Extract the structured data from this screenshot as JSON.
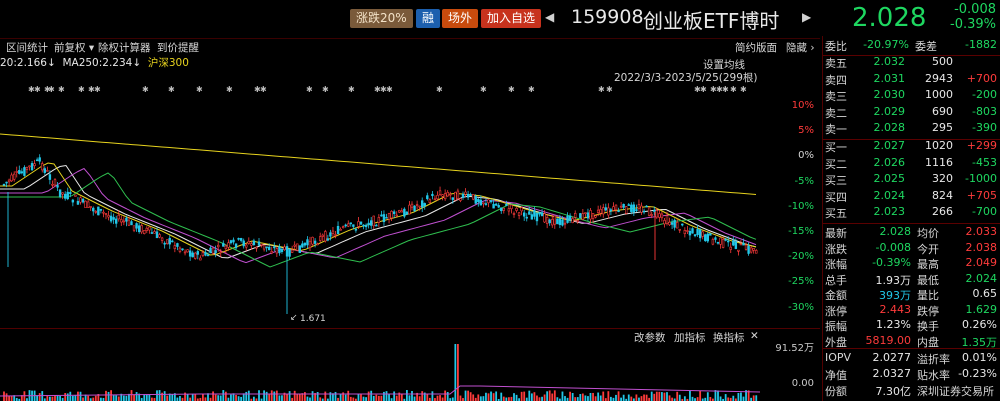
{
  "header": {
    "btn_zdf": "涨跌20%",
    "btn_rong": "融",
    "btn_cw": "场外",
    "btn_add": "加入自选",
    "code": "159908",
    "name": "创业板ETF博时",
    "price": "2.028",
    "change": "-0.008",
    "change_pct": "-0.39%"
  },
  "toolbar": {
    "items": [
      "区间统计",
      "前复权",
      "除权计算器",
      "到价提醒"
    ],
    "right": [
      "简约版面",
      "隐藏"
    ]
  },
  "ma": {
    "ma1": "20:2.166↓",
    "ma2": "MA250:2.234↓",
    "ma3": "沪深300"
  },
  "chart": {
    "ma_settings": "设置均线",
    "date_range": "2022/3/3-2023/5/25(299根)",
    "y_labels": [
      "10%",
      "5%",
      "0%",
      "-5%",
      "-10%",
      "-15%",
      "-20%",
      "-25%",
      "-30%"
    ],
    "low_label": "1.671",
    "colors": {
      "up": "#ff3b3b",
      "down": "#22c7e8",
      "ma_yellow": "#e6d21e",
      "ma_white": "#e8e8e8",
      "ma_purple": "#c050d0"
    }
  },
  "volume": {
    "buttons": [
      "改参数",
      "加指标",
      "换指标"
    ],
    "labels": [
      "91.52万",
      "0.00"
    ]
  },
  "side": {
    "committee": {
      "wb_label": "委比",
      "wb": "-20.97%",
      "wc_label": "委差",
      "wc": "-1882"
    },
    "asks": [
      {
        "label": "卖五",
        "price": "2.032",
        "vol": "500",
        "chg": ""
      },
      {
        "label": "卖四",
        "price": "2.031",
        "vol": "2943",
        "chg": "+700"
      },
      {
        "label": "卖三",
        "price": "2.030",
        "vol": "1000",
        "chg": "-200"
      },
      {
        "label": "卖二",
        "price": "2.029",
        "vol": "690",
        "chg": "-803"
      },
      {
        "label": "卖一",
        "price": "2.028",
        "vol": "295",
        "chg": "-390"
      }
    ],
    "bids": [
      {
        "label": "买一",
        "price": "2.027",
        "vol": "1020",
        "chg": "+299"
      },
      {
        "label": "买二",
        "price": "2.026",
        "vol": "1116",
        "chg": "-453"
      },
      {
        "label": "买三",
        "price": "2.025",
        "vol": "320",
        "chg": "-1000"
      },
      {
        "label": "买四",
        "price": "2.024",
        "vol": "824",
        "chg": "+705"
      },
      {
        "label": "买五",
        "price": "2.023",
        "vol": "266",
        "chg": "-700"
      }
    ],
    "stats": [
      {
        "l1": "最新",
        "v1": "2.028",
        "c1": "green",
        "l2": "均价",
        "v2": "2.033",
        "c2": "red"
      },
      {
        "l1": "涨跌",
        "v1": "-0.008",
        "c1": "green",
        "l2": "今开",
        "v2": "2.038",
        "c2": "red"
      },
      {
        "l1": "涨幅",
        "v1": "-0.39%",
        "c1": "green",
        "l2": "最高",
        "v2": "2.049",
        "c2": "red"
      },
      {
        "l1": "总手",
        "v1": "1.93万",
        "c1": "white",
        "l2": "最低",
        "v2": "2.024",
        "c2": "green"
      },
      {
        "l1": "金额",
        "v1": "393万",
        "c1": "cyan",
        "l2": "量比",
        "v2": "0.65",
        "c2": "white"
      },
      {
        "l1": "涨停",
        "v1": "2.443",
        "c1": "red",
        "l2": "跌停",
        "v2": "1.629",
        "c2": "green"
      },
      {
        "l1": "振幅",
        "v1": "1.23%",
        "c1": "white",
        "l2": "换手",
        "v2": "0.26%",
        "c2": "white"
      },
      {
        "l1": "外盘",
        "v1": "5819.00",
        "c1": "red",
        "l2": "内盘",
        "v2": "1.35万",
        "c2": "green"
      }
    ],
    "extra": [
      {
        "l1": "IOPV",
        "v1": "2.0277",
        "l2": "溢折率",
        "v2": "0.01%"
      },
      {
        "l1": "净值",
        "v1": "2.0327",
        "l2": "贴水率",
        "v2": "-0.23%"
      },
      {
        "l1": "份额",
        "v1": "7.30亿",
        "l2": "深圳证券交易所",
        "v2": ""
      }
    ]
  }
}
